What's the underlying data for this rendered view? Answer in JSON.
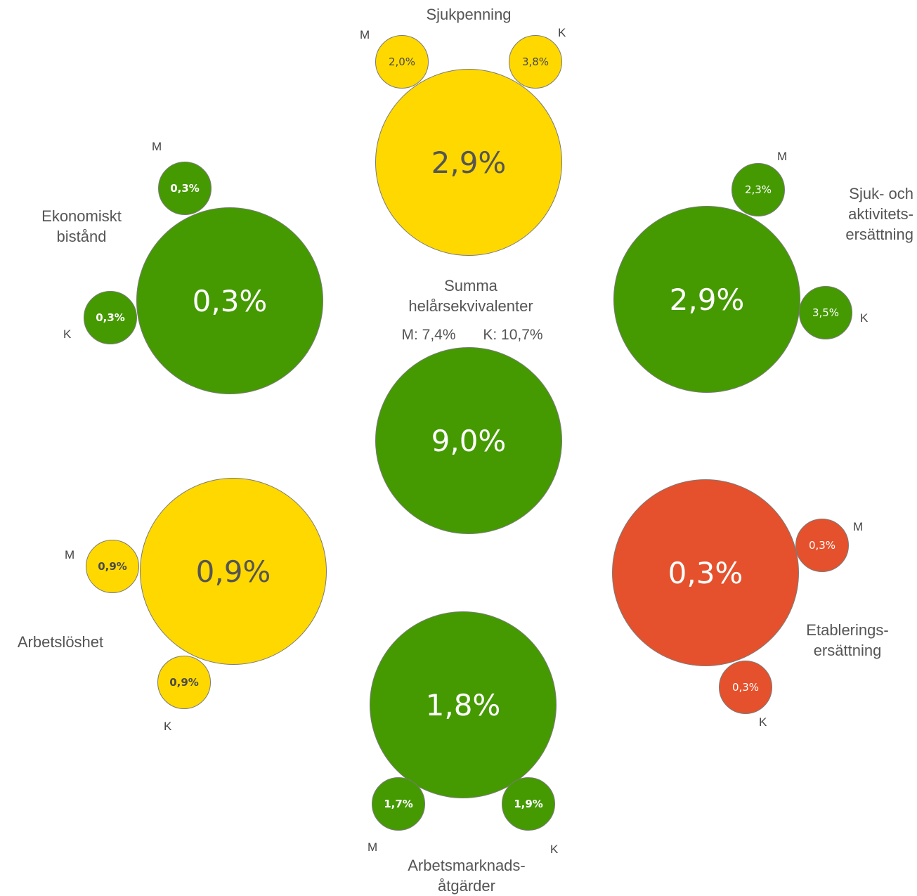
{
  "colors": {
    "green": "#449a00",
    "yellow": "#ffd800",
    "red": "#e5512c",
    "text_dark": "#555555",
    "text_light": "#ffffff"
  },
  "center": {
    "title_line1": "Summa",
    "title_line2": "helårsekvivalenter",
    "m_value": "M: 7,4%",
    "k_value": "K: 10,7%",
    "total": "9,0%",
    "color": "green"
  },
  "groups": [
    {
      "id": "sjukpenning",
      "name_lines": [
        "Sjukpenning"
      ],
      "total": "2,9%",
      "m": "2,0%",
      "k": "3,8%",
      "color": "yellow"
    },
    {
      "id": "sjuk-och-aktivitetsersattning",
      "name_lines": [
        "Sjuk- och",
        "aktivitets-",
        "ersättning"
      ],
      "total": "2,9%",
      "m": "2,3%",
      "k": "3,5%",
      "color": "green"
    },
    {
      "id": "etableringsersattning",
      "name_lines": [
        "Etablerings-",
        "ersättning"
      ],
      "total": "0,3%",
      "m": "0,3%",
      "k": "0,3%",
      "color": "red"
    },
    {
      "id": "arbetsmarknadsatgarder",
      "name_lines": [
        "Arbetsmarknads-",
        "åtgärder"
      ],
      "total": "1,8%",
      "m": "1,7%",
      "k": "1,9%",
      "color": "green"
    },
    {
      "id": "arbetsloshet",
      "name_lines": [
        "Arbetslöshet"
      ],
      "total": "0,9%",
      "m": "0,9%",
      "k": "0,9%",
      "color": "yellow"
    },
    {
      "id": "ekonomiskt-bistand",
      "name_lines": [
        "Ekonomiskt",
        "bistånd"
      ],
      "total": "0,3%",
      "m": "0,3%",
      "k": "0,3%",
      "color": "green"
    }
  ],
  "markers": {
    "m": "M",
    "k": "K"
  }
}
